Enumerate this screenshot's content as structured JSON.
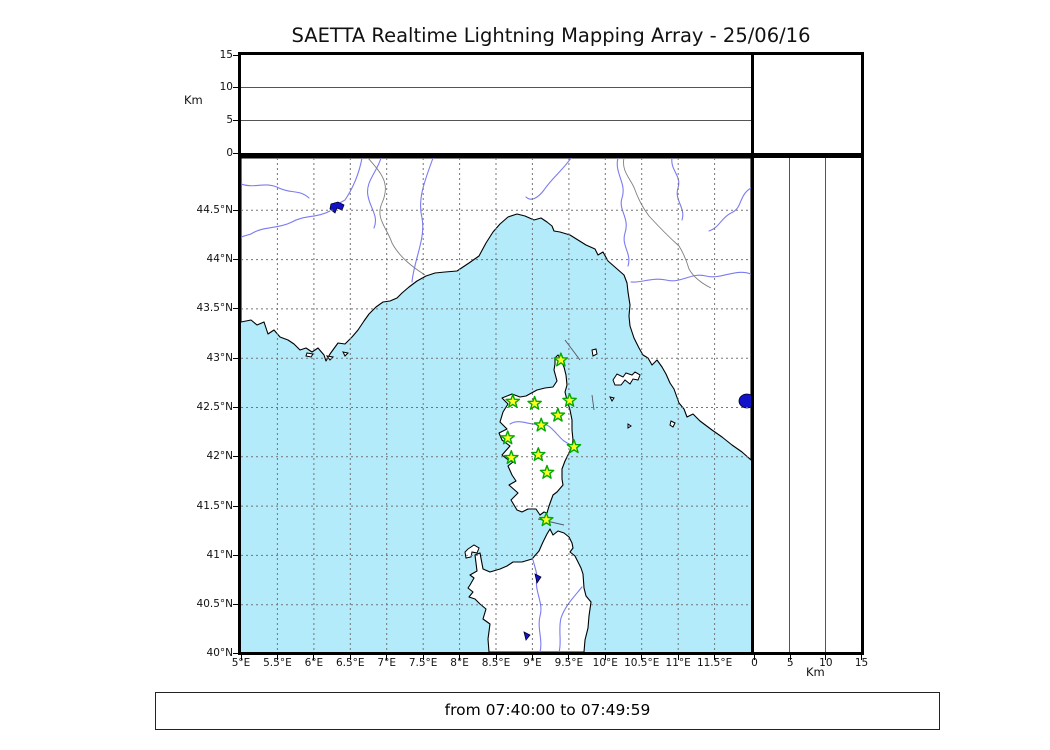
{
  "title": "SAETTA Realtime Lightning Mapping Array - 25/06/16",
  "footer": {
    "time_range": "from 07:40:00 to 07:49:59"
  },
  "altitude_axis": {
    "unit_label_left": "Km",
    "unit_label_bottom": "Km",
    "top_tick_labels": [
      "15",
      "10",
      "5",
      "0"
    ],
    "right_tick_labels": [
      "0",
      "5",
      "10",
      "15"
    ],
    "max_km": 15,
    "inner_gridlines_km": [
      5,
      10
    ]
  },
  "map_axes": {
    "lat_tick_labels": [
      "44.5°N",
      "44°N",
      "43.5°N",
      "43°N",
      "42.5°N",
      "42°N",
      "41.5°N",
      "41°N",
      "40.5°N",
      "40°N"
    ],
    "lon_tick_labels": [
      "5°E",
      "5.5°E",
      "6°E",
      "6.5°E",
      "7°E",
      "7.5°E",
      "8°E",
      "8.5°E",
      "9°E",
      "9.5°E",
      "10°E",
      "10.5°E",
      "11°E",
      "11.5°E"
    ],
    "lon_range_deg_e": [
      5.0,
      12.0
    ],
    "lat_range_deg_n": [
      40.0,
      45.03
    ]
  },
  "stations": {
    "marker": "star",
    "count": 12,
    "positions_lon_lat": [
      [
        9.39,
        42.98
      ],
      [
        8.73,
        42.56
      ],
      [
        9.03,
        42.54
      ],
      [
        9.51,
        42.57
      ],
      [
        9.35,
        42.42
      ],
      [
        9.12,
        42.32
      ],
      [
        8.66,
        42.19
      ],
      [
        9.57,
        42.1
      ],
      [
        9.08,
        42.02
      ],
      [
        8.71,
        41.99
      ],
      [
        9.2,
        41.84
      ],
      [
        9.19,
        41.36
      ]
    ]
  },
  "colors": {
    "sea": "#b4ebfa",
    "land": "#ffffff",
    "coastline": "#000000",
    "river": "#7b7bf2",
    "lake": "#1212c8",
    "borderline": "#808080",
    "grid": "#6e6e6e",
    "starfill": "#fdfd22",
    "starstroke": "#00aa00"
  }
}
